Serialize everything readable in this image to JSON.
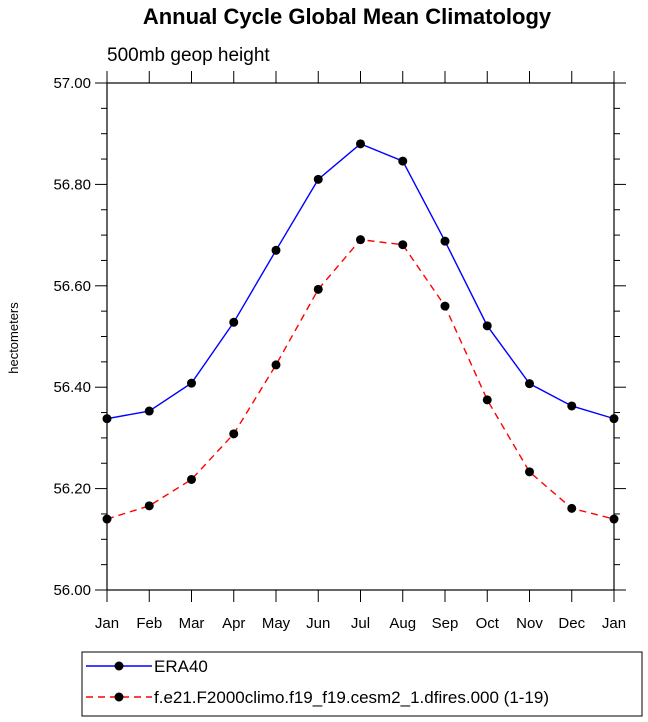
{
  "chart_data": {
    "type": "line",
    "title": "Annual Cycle Global Mean Climatology",
    "subtitle": "500mb geop height",
    "xlabel": "",
    "ylabel": "hectometers",
    "categories": [
      "Jan",
      "Feb",
      "Mar",
      "Apr",
      "May",
      "Jun",
      "Jul",
      "Aug",
      "Sep",
      "Oct",
      "Nov",
      "Dec",
      "Jan"
    ],
    "ylim": [
      56.0,
      57.0
    ],
    "yticks": [
      "56.00",
      "56.20",
      "56.40",
      "56.60",
      "56.80",
      "57.00"
    ],
    "ytick_values": [
      56.0,
      56.2,
      56.4,
      56.6,
      56.8,
      57.0
    ],
    "yminor_step": 0.05,
    "grid": false,
    "legend_position": "bottom",
    "series": [
      {
        "name": "ERA40",
        "color": "#0000ff",
        "dash": "solid",
        "marker": "circle",
        "values": [
          56.338,
          56.353,
          56.408,
          56.528,
          56.67,
          56.81,
          56.88,
          56.846,
          56.688,
          56.521,
          56.407,
          56.363,
          56.338
        ]
      },
      {
        "name": "f.e21.F2000climo.f19_f19.cesm2_1.dfires.000 (1-19)",
        "color": "#ff0000",
        "dash": "dashed",
        "marker": "circle",
        "values": [
          56.14,
          56.166,
          56.218,
          56.308,
          56.444,
          56.593,
          56.691,
          56.681,
          56.56,
          56.375,
          56.233,
          56.161,
          56.14
        ]
      }
    ]
  }
}
